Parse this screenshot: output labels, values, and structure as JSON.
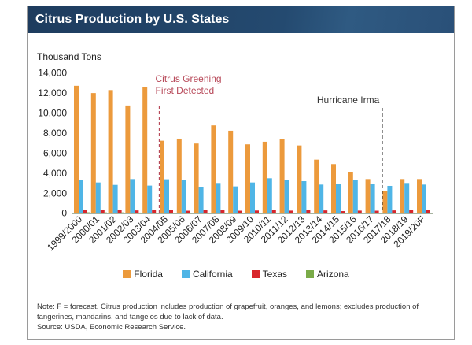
{
  "chart_data": {
    "type": "bar",
    "title": "Citrus Production by U.S. States",
    "ylabel": "Thousand Tons",
    "xlabel": "",
    "ylim": [
      0,
      14000
    ],
    "yticks": [
      "0",
      "2,000",
      "4,000",
      "6,000",
      "8,000",
      "10,000",
      "12,000",
      "14,000"
    ],
    "ytick_values": [
      0,
      2000,
      4000,
      6000,
      8000,
      10000,
      12000,
      14000
    ],
    "grid": false,
    "legend_position": "bottom",
    "categories": [
      "1999/2000",
      "2000/01",
      "2001/02",
      "2002/03",
      "2003/04",
      "2004/05",
      "2005/06",
      "2006/07",
      "2007/08",
      "2008/09",
      "2009/10",
      "2010/11",
      "2011/12",
      "2012/13",
      "2013/14",
      "2014/15",
      "2015/16",
      "2016/17",
      "2017/18",
      "2018/19",
      "2019/20F"
    ],
    "series": [
      {
        "name": "Florida",
        "color": "#ec9a3c",
        "values": [
          12730,
          12000,
          12300,
          10760,
          12600,
          7240,
          7450,
          6960,
          8770,
          8240,
          6880,
          7140,
          7400,
          6770,
          5350,
          4910,
          4120,
          3410,
          2180,
          3410,
          3410
        ]
      },
      {
        "name": "California",
        "color": "#4fb5e6",
        "values": [
          3330,
          3070,
          2830,
          3410,
          2760,
          3390,
          3310,
          2600,
          3020,
          2680,
          3070,
          3490,
          3280,
          3200,
          2860,
          2940,
          3330,
          2890,
          2730,
          3020,
          2860
        ]
      },
      {
        "name": "Texas",
        "color": "#d8262c",
        "values": [
          290,
          370,
          300,
          280,
          290,
          310,
          250,
          330,
          290,
          250,
          270,
          300,
          260,
          290,
          280,
          210,
          260,
          250,
          280,
          330,
          320
        ]
      },
      {
        "name": "Arizona",
        "color": "#7aab48",
        "values": [
          90,
          80,
          80,
          60,
          50,
          50,
          40,
          40,
          30,
          20,
          20,
          20,
          20,
          20,
          20,
          10,
          10,
          10,
          10,
          10,
          10
        ]
      }
    ],
    "annotations": [
      {
        "text_lines": [
          "Citrus Greening",
          "First Detected"
        ],
        "at_category": "2004/05",
        "color": "#b84a5a"
      },
      {
        "text_lines": [
          "Hurricane Irma"
        ],
        "at_category": "2017/18",
        "color": "#333333"
      }
    ]
  },
  "note": "Note: F = forecast. Citrus production includes production of grapefruit, oranges, and lemons; excludes production of tangerines, mandarins, and tangelos due to lack of data.",
  "source": "Source: USDA, Economic Research Service."
}
